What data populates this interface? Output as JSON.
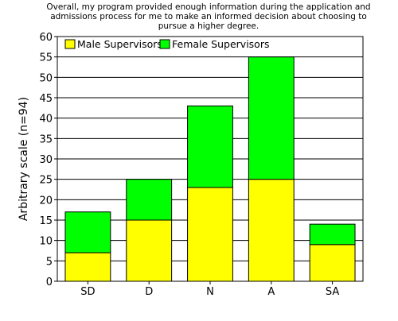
{
  "chart_data": {
    "type": "bar",
    "stacked": true,
    "title_lines": [
      "Overall, my program provided enough information during the application and",
      "admissions process for me to make an informed decision about choosing to",
      "pursue a higher degree."
    ],
    "xlabel": "",
    "ylabel": "Arbitrary scale (n=94)",
    "categories": [
      "SD",
      "D",
      "N",
      "A",
      "SA"
    ],
    "series": [
      {
        "name": "Male Supervisors",
        "color": "#ffff00",
        "values": [
          7,
          15,
          23,
          25,
          9
        ]
      },
      {
        "name": "Female Supervisors",
        "color": "#00ff00",
        "values": [
          10,
          10,
          20,
          30,
          5
        ]
      }
    ],
    "ylim": [
      0,
      60
    ],
    "yticks": [
      0,
      5,
      10,
      15,
      20,
      25,
      30,
      35,
      40,
      45,
      50,
      55,
      60
    ],
    "grid": true,
    "legend_position": "top-left"
  }
}
